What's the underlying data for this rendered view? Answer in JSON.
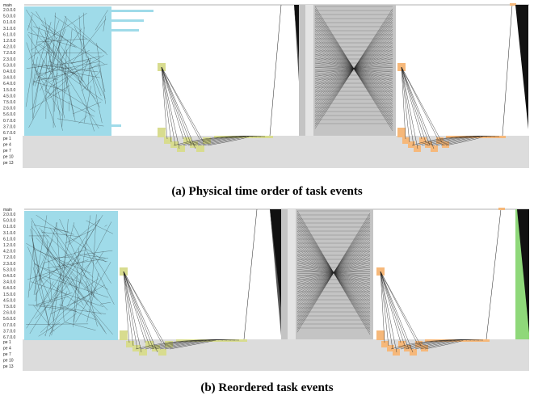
{
  "panels": [
    {
      "id": "a",
      "caption": "(a) Physical time order of task events",
      "top_label": "main",
      "row_labels": [
        "2.0.0.0",
        "5.0.0.0",
        "0.1.0.0",
        "3.1.0.0",
        "6.1.0.0",
        "1.2.0.0",
        "4.2.0.0",
        "7.2.0.0",
        "2.3.0.0",
        "5.3.0.0",
        "0.4.0.0",
        "3.4.0.0",
        "6.4.0.0",
        "1.5.0.0",
        "4.5.0.0",
        "7.5.0.0",
        "2.6.0.0",
        "5.6.0.0",
        "0.7.0.0",
        "3.7.0.0",
        "6.7.0.0"
      ],
      "pe_labels": [
        "pe 1",
        "pe 4",
        "pe 7",
        "pe 10",
        "pe 13"
      ]
    },
    {
      "id": "b",
      "caption": "(b) Reordered task events",
      "top_label": "main",
      "row_labels": [
        "2.0.0.0",
        "5.0.0.0",
        "0.1.0.0",
        "3.1.0.0",
        "6.1.0.0",
        "1.2.0.0",
        "4.2.0.0",
        "7.2.0.0",
        "2.3.0.0",
        "5.3.0.0",
        "0.4.0.0",
        "3.4.0.0",
        "6.4.0.0",
        "1.5.0.0",
        "4.5.0.0",
        "7.5.0.0",
        "2.6.0.0",
        "5.6.0.0",
        "0.7.0.0",
        "3.7.0.0",
        "6.7.0.0"
      ],
      "pe_labels": [
        "pe 1",
        "pe 4",
        "pe 7",
        "pe 10",
        "pe 13"
      ]
    }
  ],
  "colors": {
    "cyan": "#9fdbe9",
    "olive": "#d8dc8f",
    "gray": "#c4c4c4",
    "orange": "#f6b87a",
    "green": "#8fd87a",
    "pe_background": "#dcdcdc",
    "line": "#222222"
  }
}
